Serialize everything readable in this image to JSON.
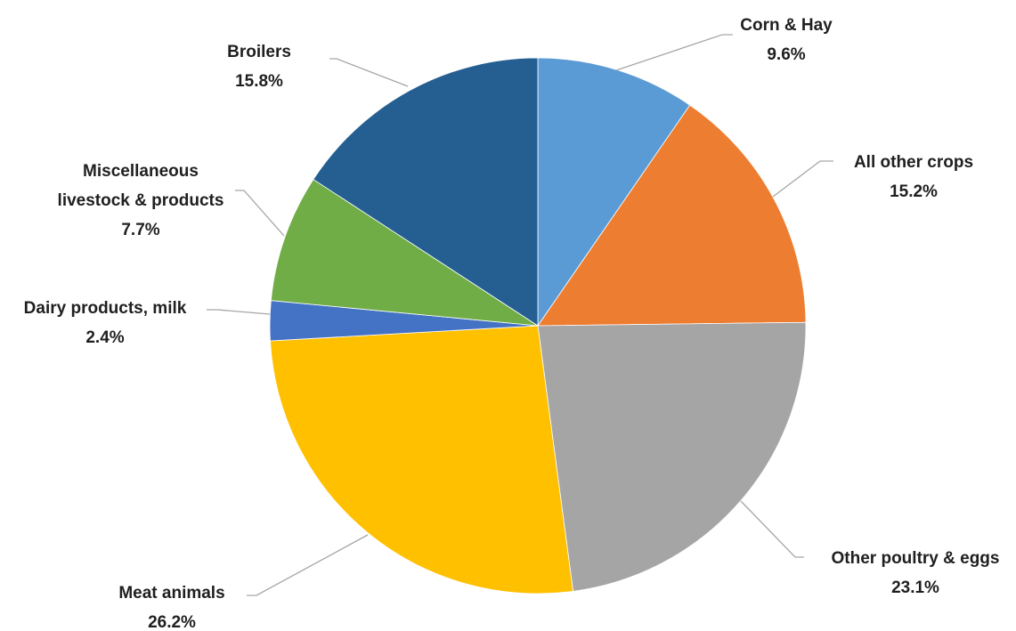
{
  "chart_data": {
    "type": "pie",
    "title": "",
    "start_angle_deg": 0,
    "direction": "clockwise",
    "legend": "none",
    "slices": [
      {
        "name": "Corn & Hay",
        "value": 9.6,
        "label": "9.6%",
        "color": "#5b9bd5",
        "label_lines": [
          "Corn & Hay",
          "9.6%"
        ]
      },
      {
        "name": "All other crops",
        "value": 15.2,
        "label": "15.2%",
        "color": "#ed7d31",
        "label_lines": [
          "All other crops",
          "15.2%"
        ]
      },
      {
        "name": "Other poultry & eggs",
        "value": 23.1,
        "label": "23.1%",
        "color": "#a5a5a5",
        "label_lines": [
          "Other poultry & eggs",
          "23.1%"
        ]
      },
      {
        "name": "Meat animals",
        "value": 26.2,
        "label": "26.2%",
        "color": "#ffc000",
        "label_lines": [
          "Meat animals",
          "26.2%"
        ]
      },
      {
        "name": "Dairy products, milk",
        "value": 2.4,
        "label": "2.4%",
        "color": "#4472c4",
        "label_lines": [
          "Dairy products, milk",
          "2.4%"
        ]
      },
      {
        "name": "Miscellaneous livestock & products",
        "value": 7.7,
        "label": "7.7%",
        "color": "#70ad47",
        "label_lines": [
          "Miscellaneous",
          "livestock & products",
          "7.7%"
        ]
      },
      {
        "name": "Broilers",
        "value": 15.8,
        "label": "15.8%",
        "color": "#255e91",
        "label_lines": [
          "Broilers",
          "15.8%"
        ]
      }
    ]
  }
}
